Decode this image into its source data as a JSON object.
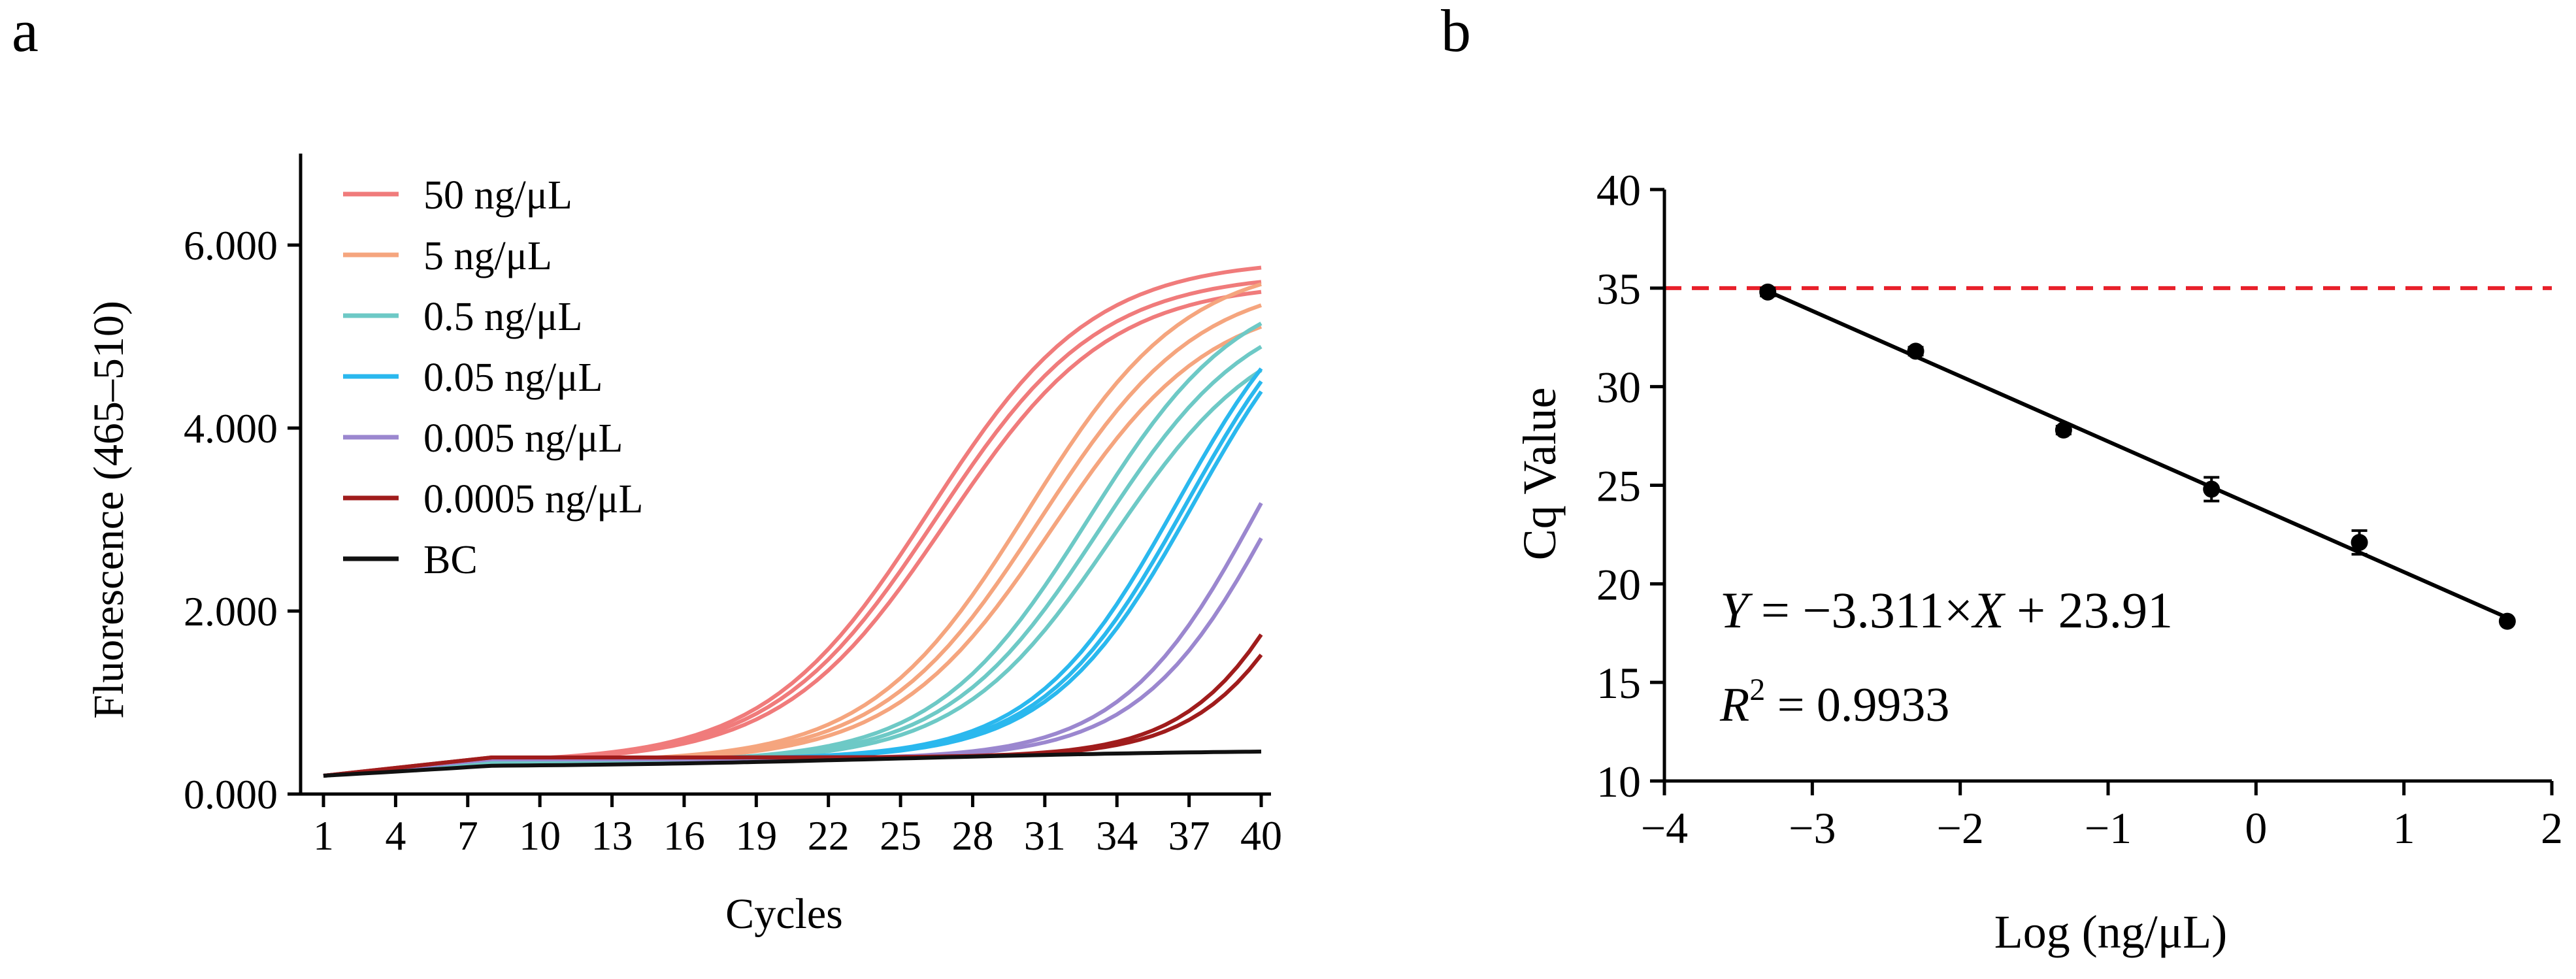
{
  "panels": {
    "a": "a",
    "b": "b"
  },
  "chart_data": [
    {
      "type": "line",
      "panel": "a",
      "title": "",
      "xlabel": "Cycles",
      "ylabel": "Fluorescence (465–510)",
      "xlim": [
        1,
        40
      ],
      "ylim": [
        0,
        7000
      ],
      "xticks": [
        1,
        4,
        7,
        10,
        13,
        16,
        19,
        22,
        25,
        28,
        31,
        34,
        37,
        40
      ],
      "xtick_labels": [
        "1",
        "4",
        "7",
        "10",
        "13",
        "16",
        "19",
        "22",
        "25",
        "28",
        "31",
        "34",
        "37",
        "40"
      ],
      "yticks": [
        0,
        2000,
        4000,
        6000
      ],
      "ytick_labels": [
        "0.000",
        "2.000",
        "4.000",
        "6.000"
      ],
      "legend_position": "top-left",
      "model": "sigmoid: F = base + amp / (1 + exp(-(cycle - mid) / slope)); base line drifts 200→350 over cycles 1–8",
      "series": [
        {
          "name": "50 ng/μL",
          "color": "#f07b7b",
          "replicates": [
            {
              "base": 350,
              "amp": 5500,
              "mid": 26.2,
              "slope": 3.4
            },
            {
              "base": 350,
              "amp": 5350,
              "mid": 26.5,
              "slope": 3.4
            },
            {
              "base": 350,
              "amp": 5250,
              "mid": 26.9,
              "slope": 3.4
            }
          ]
        },
        {
          "name": "5 ng/μL",
          "color": "#f5a57e",
          "replicates": [
            {
              "base": 350,
              "amp": 5500,
              "mid": 30.3,
              "slope": 3.3
            },
            {
              "base": 350,
              "amp": 5300,
              "mid": 30.8,
              "slope": 3.3
            },
            {
              "base": 350,
              "amp": 5100,
              "mid": 31.3,
              "slope": 3.3
            }
          ]
        },
        {
          "name": "0.5 ng/μL",
          "color": "#6dc9c6",
          "replicates": [
            {
              "base": 350,
              "amp": 5300,
              "mid": 32.8,
              "slope": 3.2
            },
            {
              "base": 350,
              "amp": 5100,
              "mid": 33.3,
              "slope": 3.2
            },
            {
              "base": 350,
              "amp": 4900,
              "mid": 33.8,
              "slope": 3.2
            }
          ]
        },
        {
          "name": "0.05 ng/μL",
          "color": "#2ab8ee",
          "replicates": [
            {
              "base": 380,
              "amp": 5600,
              "mid": 36.5,
              "slope": 3.0
            },
            {
              "base": 380,
              "amp": 5600,
              "mid": 36.9,
              "slope": 3.0
            },
            {
              "base": 380,
              "amp": 5600,
              "mid": 37.2,
              "slope": 3.0
            }
          ]
        },
        {
          "name": "0.005 ng/μL",
          "color": "#9b87cf",
          "replicates": [
            {
              "base": 380,
              "amp": 5600,
              "mid": 40.0,
              "slope": 2.9
            },
            {
              "base": 380,
              "amp": 5600,
              "mid": 40.8,
              "slope": 2.9
            }
          ]
        },
        {
          "name": "0.0005 ng/μL",
          "color": "#a01c1c",
          "replicates": [
            {
              "base": 400,
              "amp": 5600,
              "mid": 43.0,
              "slope": 2.6
            },
            {
              "base": 400,
              "amp": 5600,
              "mid": 43.6,
              "slope": 2.6
            }
          ]
        },
        {
          "name": "BC",
          "color": "#111111",
          "replicates": [
            {
              "base": 300,
              "amp": 190,
              "mid": 25.0,
              "slope": 7.0
            }
          ]
        }
      ]
    },
    {
      "type": "scatter",
      "panel": "b",
      "title": "",
      "xlabel": "Log (ng/μL)",
      "ylabel": "Cq Value",
      "xlim": [
        -4,
        2
      ],
      "ylim": [
        10,
        40
      ],
      "xticks": [
        -4,
        -3,
        -2,
        -1,
        0,
        1,
        2
      ],
      "xtick_labels": [
        "−4",
        "−3",
        "−2",
        "−1",
        "0",
        "1",
        "2"
      ],
      "yticks": [
        10,
        15,
        20,
        25,
        30,
        35,
        40
      ],
      "ytick_labels": [
        "10",
        "15",
        "20",
        "25",
        "30",
        "35",
        "40"
      ],
      "points": [
        {
          "x": -3.301,
          "y": 34.8,
          "err": 0.2
        },
        {
          "x": -2.301,
          "y": 31.8,
          "err": 0.2
        },
        {
          "x": -1.301,
          "y": 27.8,
          "err": 0.2
        },
        {
          "x": -0.301,
          "y": 24.8,
          "err": 0.6
        },
        {
          "x": 0.699,
          "y": 22.1,
          "err": 0.6
        },
        {
          "x": 1.699,
          "y": 18.1,
          "err": 0.1
        }
      ],
      "fit": {
        "slope": -3.311,
        "intercept": 23.91,
        "x_range": [
          -3.301,
          1.699
        ],
        "color": "#000000"
      },
      "threshold": {
        "y": 35,
        "color": "#e8202a"
      },
      "equation": {
        "Y": "Y",
        "eq": " = −3.311×",
        "X": "X",
        "rest": " + 23.91"
      },
      "r2": {
        "R": "R",
        "sup": "2",
        "rest": " = 0.9933"
      }
    }
  ]
}
